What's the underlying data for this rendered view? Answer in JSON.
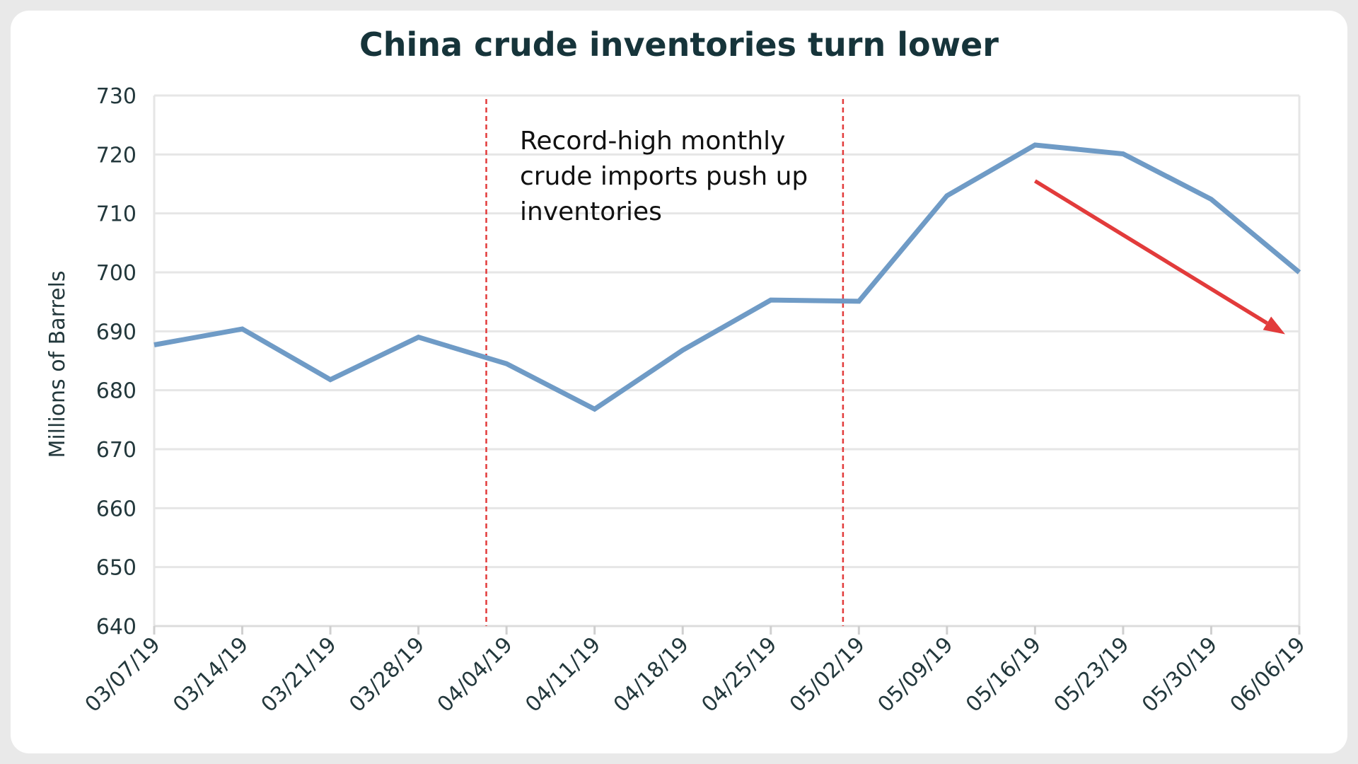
{
  "chart_data": {
    "type": "line",
    "title": "China crude inventories turn lower",
    "xlabel": "",
    "ylabel": "Millions of Barrels",
    "ylim": [
      640,
      730
    ],
    "yticks": [
      640,
      650,
      660,
      670,
      680,
      690,
      700,
      710,
      720,
      730
    ],
    "categories": [
      "03/07/19",
      "03/14/19",
      "03/21/19",
      "03/28/19",
      "04/04/19",
      "04/11/19",
      "04/18/19",
      "04/25/19",
      "05/02/19",
      "05/09/19",
      "05/16/19",
      "05/23/19",
      "05/30/19",
      "06/06/19"
    ],
    "series": [
      {
        "values": [
          687.7,
          690.4,
          681.8,
          689.0,
          684.5,
          676.8,
          686.8,
          695.3,
          695.1,
          713.0,
          721.6,
          720.1,
          712.4,
          700.0
        ]
      }
    ],
    "vertical_markers": [
      {
        "x_between": [
          "03/28/19",
          "04/04/19"
        ],
        "fraction": 0.77
      },
      {
        "x_between": [
          "04/25/19",
          "05/02/19"
        ],
        "fraction": 0.82
      }
    ],
    "annotation": {
      "lines": [
        "Record-high monthly",
        "crude imports push up",
        "inventories"
      ]
    },
    "trend_arrow": {
      "from": {
        "x": "05/16/19",
        "y": 715.5
      },
      "to": {
        "x": "06/06/19",
        "y": 689.5
      }
    },
    "colors": {
      "line": "#6f9bc6",
      "marker": "#e23b3b",
      "arrow": "#e23b3b",
      "grid": "#e6e6e6"
    },
    "grid": true
  }
}
